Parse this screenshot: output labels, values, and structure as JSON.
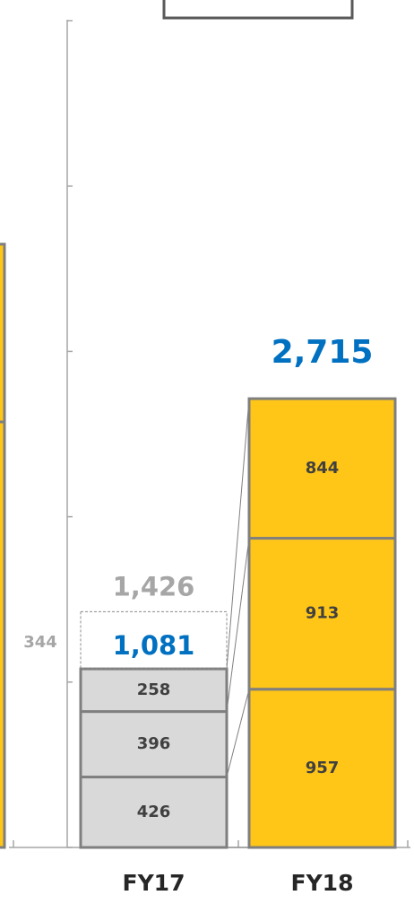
{
  "chart_data": {
    "type": "stacked_bar",
    "categories": [
      "FY17",
      "FY18"
    ],
    "segments": [
      [
        426,
        396,
        258
      ],
      [
        957,
        913,
        844
      ]
    ],
    "colors": [
      "#d9d9d9",
      "#ffc517"
    ],
    "totals": [
      1081,
      2715
    ],
    "total_labels": [
      "1,081",
      "2,715"
    ],
    "reference": {
      "value": 1426,
      "label": "1,426"
    },
    "difference": 344,
    "ylim": [
      0,
      5125
    ],
    "yticks": [
      0,
      1000,
      2000,
      3000,
      4000,
      5000
    ]
  }
}
